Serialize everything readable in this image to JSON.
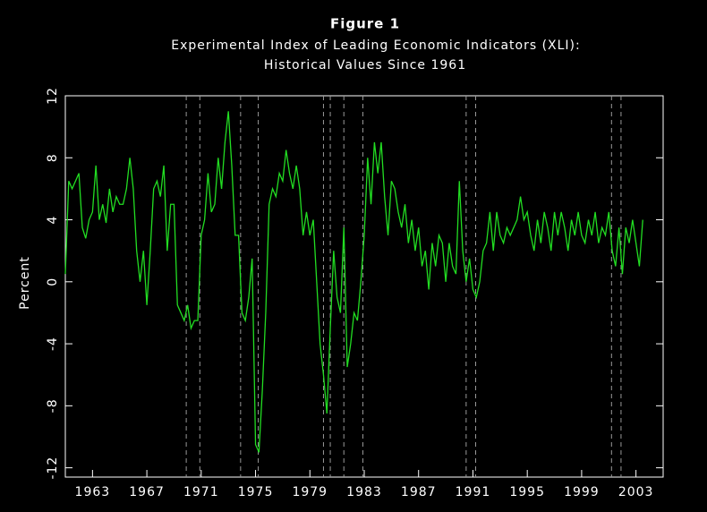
{
  "chart_data": {
    "type": "line",
    "title": "Figure 1",
    "subtitle": [
      "Experimental Index of Leading Economic Indicators (XLI):",
      "Historical Values Since 1961"
    ],
    "y_label": "Percent",
    "x": [
      1961,
      1961.25,
      1961.5,
      1961.75,
      1962,
      1962.25,
      1962.5,
      1962.75,
      1963,
      1963.25,
      1963.5,
      1963.75,
      1964,
      1964.25,
      1964.5,
      1964.75,
      1965,
      1965.25,
      1965.5,
      1965.75,
      1966,
      1966.25,
      1966.5,
      1966.75,
      1967,
      1967.25,
      1967.5,
      1967.75,
      1968,
      1968.25,
      1968.5,
      1968.75,
      1969,
      1969.25,
      1969.5,
      1969.75,
      1970,
      1970.25,
      1970.5,
      1970.75,
      1971,
      1971.25,
      1971.5,
      1971.75,
      1972,
      1972.25,
      1972.5,
      1972.75,
      1973,
      1973.25,
      1973.5,
      1973.75,
      1974,
      1974.25,
      1974.5,
      1974.75,
      1975,
      1975.25,
      1975.5,
      1975.75,
      1976,
      1976.25,
      1976.5,
      1976.75,
      1977,
      1977.25,
      1977.5,
      1977.75,
      1978,
      1978.25,
      1978.5,
      1978.75,
      1979,
      1979.25,
      1979.5,
      1979.75,
      1980,
      1980.25,
      1980.5,
      1980.75,
      1981,
      1981.25,
      1981.5,
      1981.75,
      1982,
      1982.25,
      1982.5,
      1982.75,
      1983,
      1983.25,
      1983.5,
      1983.75,
      1984,
      1984.25,
      1984.5,
      1984.75,
      1985,
      1985.25,
      1985.5,
      1985.75,
      1986,
      1986.25,
      1986.5,
      1986.75,
      1987,
      1987.25,
      1987.5,
      1987.75,
      1988,
      1988.25,
      1988.5,
      1988.75,
      1989,
      1989.25,
      1989.5,
      1989.75,
      1990,
      1990.25,
      1990.5,
      1990.75,
      1991,
      1991.25,
      1991.5,
      1991.75,
      1992,
      1992.25,
      1992.5,
      1992.75,
      1993,
      1993.25,
      1993.5,
      1993.75,
      1994,
      1994.25,
      1994.5,
      1994.75,
      1995,
      1995.25,
      1995.5,
      1995.75,
      1996,
      1996.25,
      1996.5,
      1996.75,
      1997,
      1997.25,
      1997.5,
      1997.75,
      1998,
      1998.25,
      1998.5,
      1998.75,
      1999,
      1999.25,
      1999.5,
      1999.75,
      2000,
      2000.25,
      2000.5,
      2000.75,
      2001,
      2001.25,
      2001.5,
      2001.75,
      2002,
      2002.25,
      2002.5,
      2002.75,
      2003,
      2003.25,
      2003.5
    ],
    "series": [
      {
        "name": "XLI",
        "color": "#22dd22",
        "values": [
          0.5,
          6.5,
          6,
          6.5,
          7,
          3.5,
          2.8,
          4,
          4.5,
          7.5,
          4,
          5,
          3.8,
          6,
          4.5,
          5.5,
          5,
          5,
          6,
          8,
          6,
          2,
          0,
          2,
          -1.5,
          2,
          6,
          6.5,
          5.5,
          7.5,
          2,
          5,
          5,
          -1.5,
          -2,
          -2.5,
          -1.5,
          -3,
          -2.5,
          -2.5,
          3,
          4,
          7,
          4.5,
          5,
          8,
          6,
          9,
          11,
          7.5,
          3,
          3,
          -2,
          -2.5,
          -1,
          1.5,
          -10.5,
          -11,
          -7,
          -2,
          5,
          6,
          5.5,
          7,
          6.5,
          8.5,
          7,
          6,
          7.5,
          6,
          3,
          4.5,
          3,
          4,
          0,
          -4,
          -6,
          -8.5,
          -3,
          2,
          -1,
          -2,
          3.5,
          -5.5,
          -4,
          -2,
          -2.5,
          0,
          3,
          8,
          5,
          9,
          7,
          9,
          5.5,
          3,
          6.5,
          6,
          4.5,
          3.5,
          5,
          2.5,
          4,
          2,
          3.5,
          1,
          2,
          -0.5,
          2.5,
          1,
          3,
          2.5,
          0,
          2.5,
          1,
          0.5,
          6.5,
          2,
          0,
          1.5,
          -0.5,
          -1,
          0,
          2,
          2.5,
          4.5,
          2,
          4.5,
          3,
          2.5,
          3.5,
          3,
          3.5,
          4,
          5.5,
          4,
          4.5,
          3,
          2,
          4,
          2.5,
          4.5,
          3.5,
          2,
          4.5,
          3,
          4.5,
          3.5,
          2,
          4,
          3,
          4.5,
          3,
          2.5,
          4,
          3,
          4.5,
          2.5,
          3.5,
          3,
          4.5,
          2,
          1,
          3.5,
          0.5,
          3.5,
          2.5,
          4,
          2.5,
          1,
          4
        ]
      }
    ],
    "recession_lines": [
      1969.9,
      1970.9,
      1973.9,
      1975.2,
      1980.0,
      1980.5,
      1981.5,
      1982.9,
      1990.5,
      1991.2,
      2001.2,
      2001.9
    ],
    "xlim": [
      1961,
      2005
    ],
    "xticks": [
      1963,
      1967,
      1971,
      1975,
      1979,
      1983,
      1987,
      1991,
      1995,
      1999,
      2003
    ],
    "ylim": [
      -12.6,
      12
    ],
    "yticks": [
      -12,
      -8,
      -4,
      0,
      4,
      8,
      12
    ]
  }
}
